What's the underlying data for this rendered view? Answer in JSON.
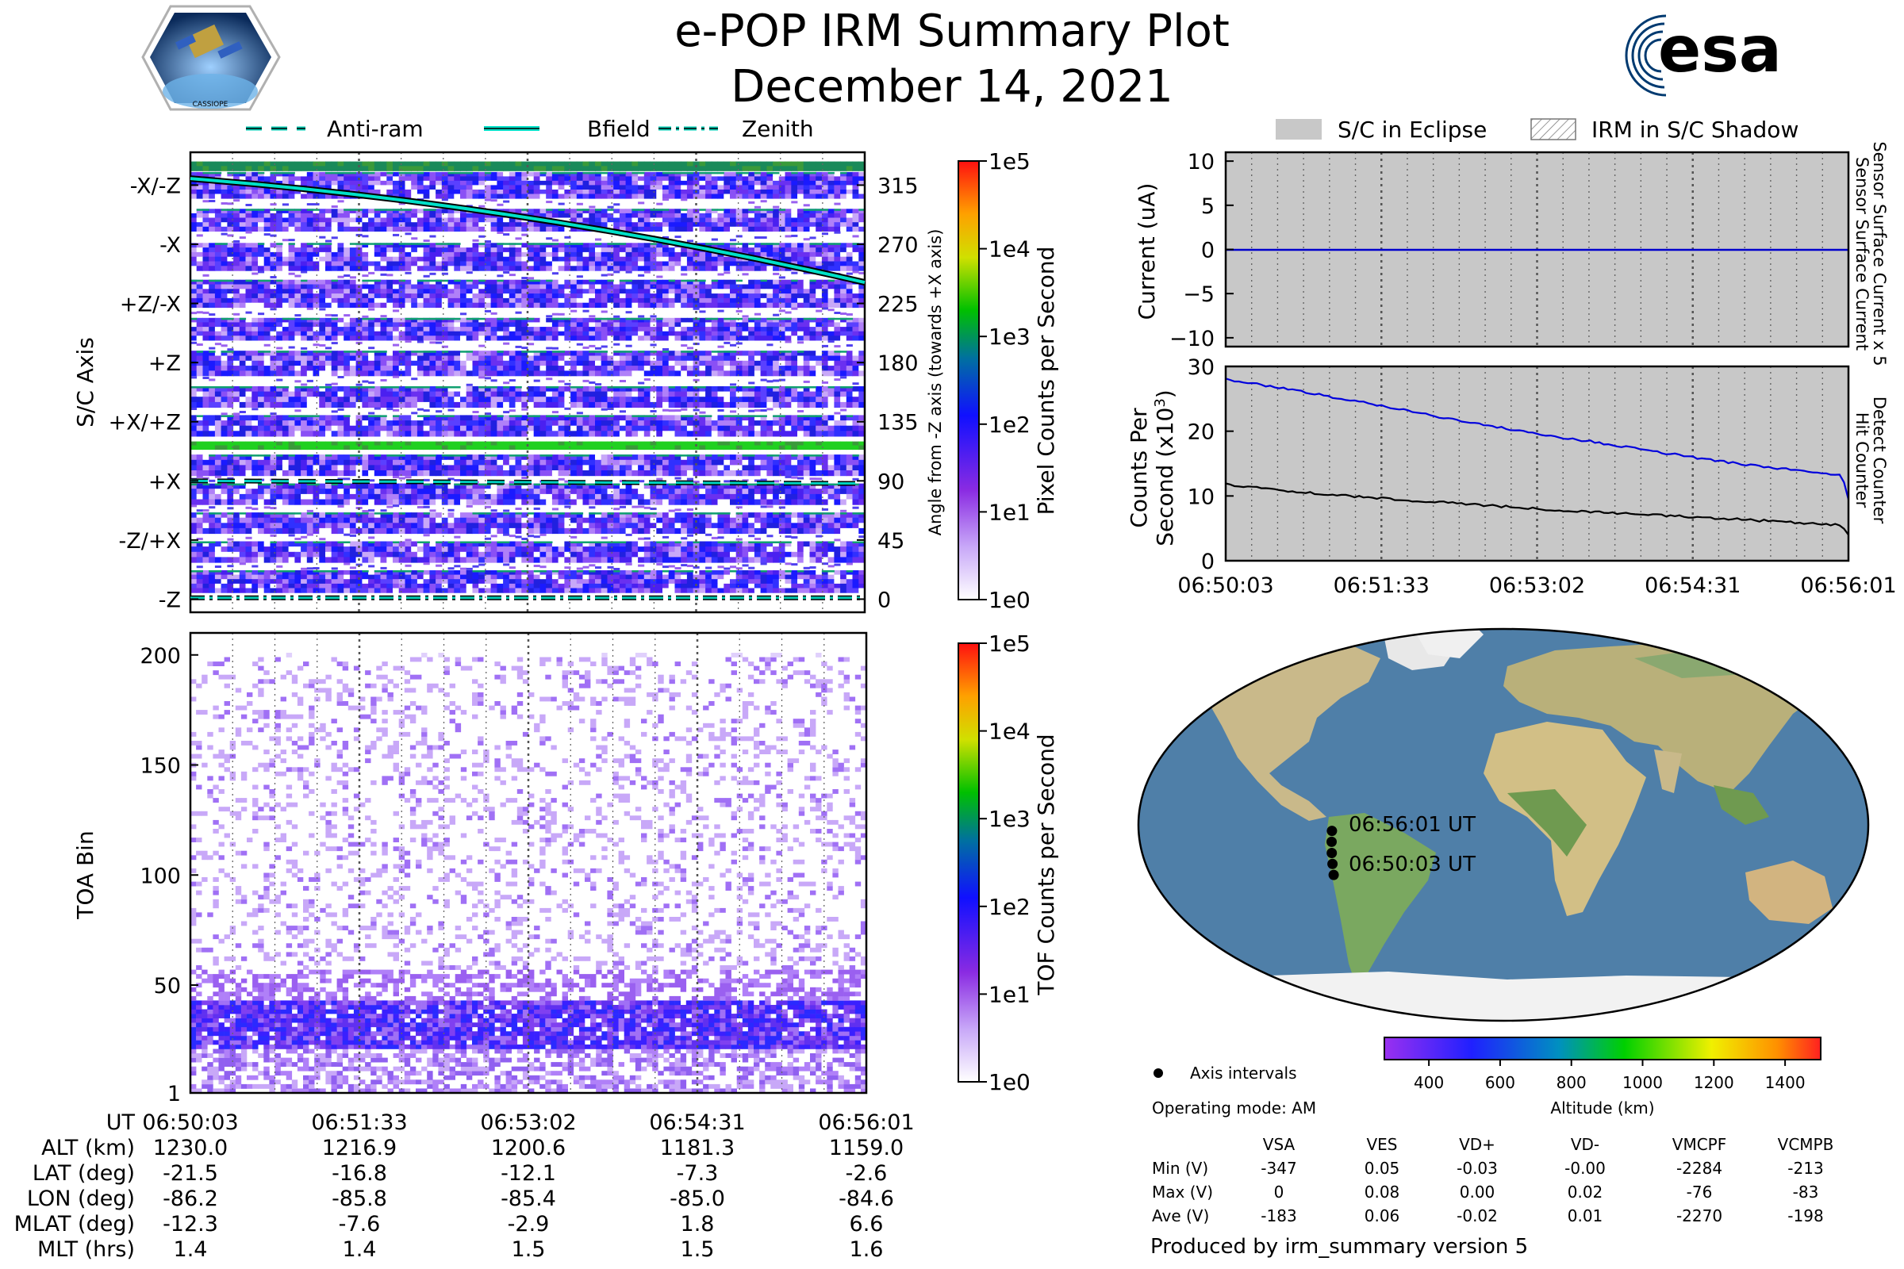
{
  "header": {
    "title": "e-POP IRM Summary Plot",
    "date": "December 14, 2021",
    "logo_left_text": "CASSIOPE",
    "logo_right_text": "esa"
  },
  "legend_top_left": [
    "Anti-ram",
    "Bfield",
    "Zenith"
  ],
  "legend_top_right": [
    "S/C in Eclipse",
    "IRM in S/C Shadow"
  ],
  "colors": {
    "antiram": "#00d0c0",
    "bfield": "#00e0c8",
    "zenith": "#00c8b0",
    "eclipse_bg": "#c8c8c8",
    "current_line": "#0000cc",
    "detect_line": "#0000dd",
    "hit_line": "#000000",
    "ocean": "#4f7fa8",
    "land": "#c9b98a"
  },
  "time_ticks": [
    "06:50:03",
    "06:51:33",
    "06:53:02",
    "06:54:31",
    "06:56:01"
  ],
  "chart_data": [
    {
      "type": "heatmap",
      "name": "pixel-spectrogram",
      "ylabel": "S/C Axis",
      "y_tick_labels_left": [
        "-X/-Z",
        "-X",
        "+Z/-X",
        "+Z",
        "+X/+Z",
        "+X",
        "-Z/+X",
        "-Z"
      ],
      "y2label": "Angle from -Z axis (towards +X axis)",
      "y2_ticks": [
        315,
        270,
        225,
        180,
        135,
        90,
        45,
        0
      ],
      "y2lim": [
        -10,
        340
      ],
      "colorbar_label": "Pixel Counts per Second",
      "colorbar_ticks": [
        "1e5",
        "1e4",
        "1e3",
        "1e2",
        "1e1",
        "1e0"
      ],
      "lines": {
        "Bfield": {
          "x": [
            0,
            1
          ],
          "y": [
            320,
            241
          ]
        },
        "Anti-ram": {
          "x": [
            0,
            1
          ],
          "y": [
            90,
            88
          ]
        },
        "Zenith": {
          "x": [
            0,
            1
          ],
          "y": [
            1,
            1
          ]
        }
      }
    },
    {
      "type": "heatmap",
      "name": "tof-spectrogram",
      "ylabel": "TOA Bin",
      "y_ticks": [
        1,
        50,
        100,
        150,
        200
      ],
      "ylim": [
        1,
        210
      ],
      "colorbar_label": "TOF Counts per Second",
      "colorbar_ticks": [
        "1e5",
        "1e4",
        "1e3",
        "1e2",
        "1e1",
        "1e0"
      ]
    },
    {
      "type": "line",
      "name": "current-plot",
      "ylabel": "Current (uA)",
      "right_label_1": "Sensor Surface Current x 5",
      "right_label_2": "Sensor Surface Current",
      "y_ticks": [
        10,
        5,
        0,
        -5,
        -10
      ],
      "ylim": [
        -11,
        11
      ],
      "series": [
        {
          "name": "Sensor Surface Current",
          "x": [
            0,
            1
          ],
          "y": [
            0,
            0
          ]
        }
      ]
    },
    {
      "type": "line",
      "name": "counts-plot",
      "ylabel_1": "Counts Per",
      "ylabel_2": "Second (x10",
      "ylabel_sup": "3",
      "ylabel_end": ")",
      "right_label_1": "Detect Counter",
      "right_label_2": "Hit Counter",
      "y_ticks": [
        30,
        20,
        10,
        0
      ],
      "ylim": [
        0,
        30
      ],
      "series": [
        {
          "name": "Detect Counter",
          "x": [
            0,
            0.1,
            0.2,
            0.3,
            0.4,
            0.5,
            0.6,
            0.7,
            0.8,
            0.9,
            0.99,
            1.0
          ],
          "y": [
            28,
            26.5,
            24.8,
            23,
            21.2,
            19.6,
            18.2,
            16.7,
            15.3,
            14.1,
            13.2,
            9.5
          ]
        },
        {
          "name": "Hit Counter",
          "x": [
            0,
            0.1,
            0.2,
            0.3,
            0.4,
            0.5,
            0.6,
            0.7,
            0.8,
            0.9,
            0.99,
            1.0
          ],
          "y": [
            11.8,
            10.8,
            10.0,
            9.3,
            8.7,
            8.0,
            7.5,
            7.0,
            6.5,
            6.0,
            5.5,
            4.0
          ]
        }
      ]
    }
  ],
  "map": {
    "label_end": "06:56:01 UT",
    "label_start": "06:50:03 UT",
    "track_lon": [
      -86.2,
      -85.8,
      -85.4,
      -85.0,
      -84.6
    ],
    "track_lat": [
      -21.5,
      -16.8,
      -12.1,
      -7.3,
      -2.6
    ]
  },
  "altitude_bar": {
    "ticks": [
      400,
      600,
      800,
      1000,
      1200,
      1400
    ],
    "label": "Altitude (km)"
  },
  "info": {
    "axis_intervals": "Axis intervals",
    "operating_mode": "Operating mode: AM",
    "produced_by": "Produced by irm_summary version 5"
  },
  "voltage_table": {
    "headers": [
      "",
      "VSA",
      "VES",
      "VD+",
      "VD-",
      "VMCPF",
      "VCMPB"
    ],
    "rows": [
      [
        "Min (V)",
        "-347",
        "0.05",
        "-0.03",
        "-0.00",
        "-2284",
        "-213"
      ],
      [
        "Max (V)",
        "0",
        "0.08",
        "0.00",
        "0.02",
        "-76",
        "-83"
      ],
      [
        "Ave (V)",
        "-183",
        "0.06",
        "-0.02",
        "0.01",
        "-2270",
        "-198"
      ]
    ]
  },
  "ephemeris": {
    "labels": [
      "UT",
      "ALT (km)",
      "LAT (deg)",
      "LON (deg)",
      "MLAT (deg)",
      "MLT (hrs)"
    ],
    "columns": [
      [
        "06:50:03",
        "1230.0",
        "-21.5",
        "-86.2",
        "-12.3",
        "1.4"
      ],
      [
        "06:51:33",
        "1216.9",
        "-16.8",
        "-85.8",
        "-7.6",
        "1.4"
      ],
      [
        "06:53:02",
        "1200.6",
        "-12.1",
        "-85.4",
        "-2.9",
        "1.5"
      ],
      [
        "06:54:31",
        "1181.3",
        "-7.3",
        "-85.0",
        "1.8",
        "1.5"
      ],
      [
        "06:56:01",
        "1159.0",
        "-2.6",
        "-84.6",
        "6.6",
        "1.6"
      ]
    ]
  }
}
